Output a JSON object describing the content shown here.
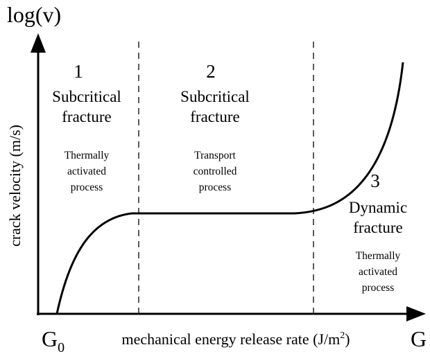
{
  "axes": {
    "y_top_label": "log(v)",
    "y_axis_label": "crack velocity (m/s)",
    "x_axis_label": {
      "text": "mechanical energy release rate (J/m",
      "sup": "2",
      "tail": ")"
    },
    "x_origin_label": {
      "base": "G",
      "sub": "0"
    },
    "x_end_label": "G"
  },
  "regions": [
    {
      "number": "1",
      "title_lines": [
        "Subcritical",
        "fracture"
      ],
      "description_lines": [
        "Thermally",
        "activated",
        "process"
      ]
    },
    {
      "number": "2",
      "title_lines": [
        "Subcritical",
        "fracture"
      ],
      "description_lines": [
        "Transport",
        "controlled",
        "process"
      ]
    },
    {
      "number": "3",
      "title_lines": [
        "Dynamic",
        "fracture"
      ],
      "description_lines": [
        "Thermally",
        "activated",
        "process"
      ]
    }
  ]
}
